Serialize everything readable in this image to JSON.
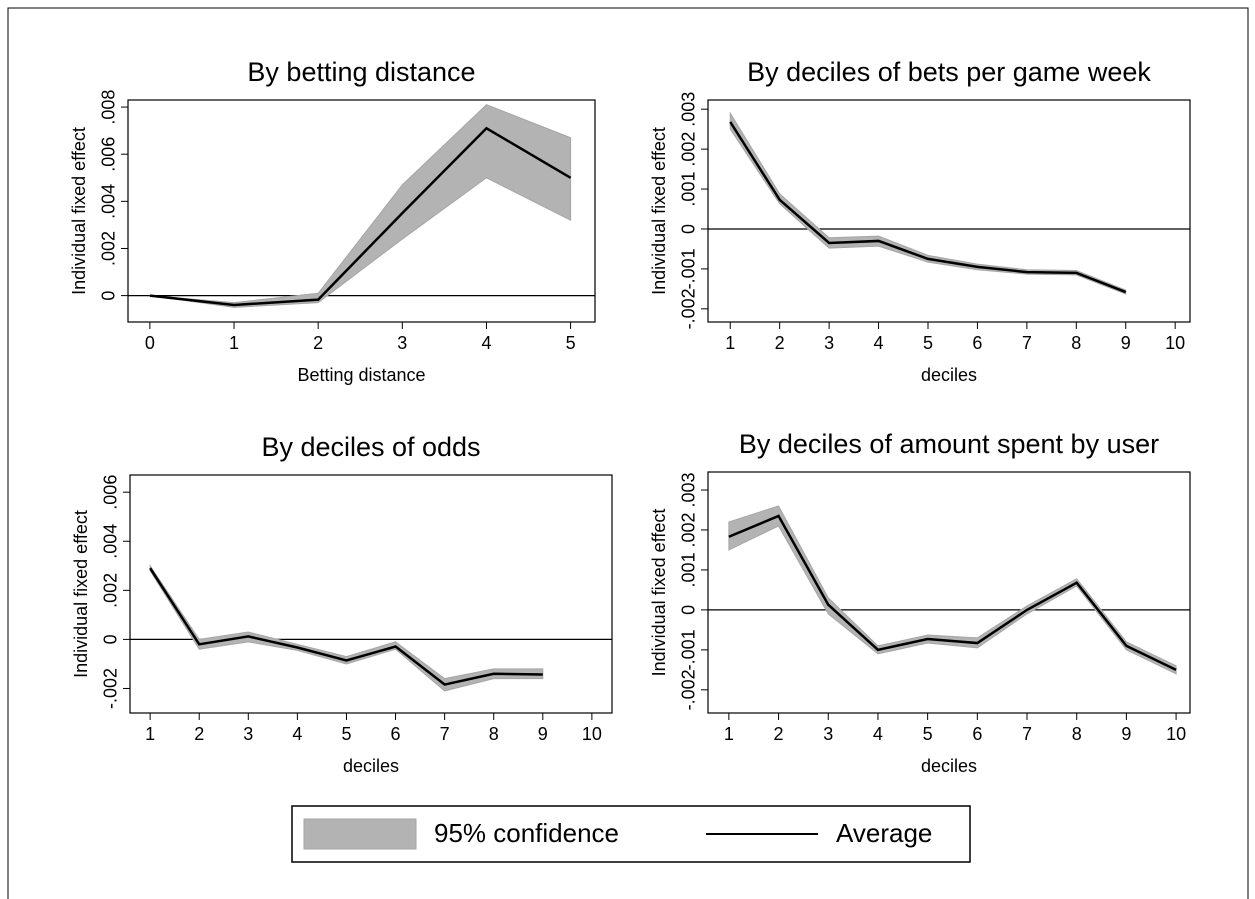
{
  "chart_data": [
    {
      "type": "line",
      "title": "By betting distance",
      "xlabel": "Betting distance",
      "ylabel": "Individual fixed effect",
      "x": [
        0,
        1,
        2,
        3,
        4,
        5
      ],
      "xlim": [
        -0.26,
        5.29
      ],
      "xticks": [
        0,
        1,
        2,
        3,
        4,
        5
      ],
      "ylim": [
        -0.00112,
        0.0083
      ],
      "yticks": [
        0,
        {
          "value": 0.002,
          "label": ".002"
        },
        {
          "value": 0.004,
          "label": ".004"
        },
        {
          "value": 0.006,
          "label": ".006"
        },
        {
          "value": 0.008,
          "label": ".008"
        }
      ],
      "zero_line": true,
      "series": [
        {
          "name": "95% confidence",
          "color": "#b3b3b3",
          "lower": [
            0,
            -0.0005,
            -0.0003,
            0.0024,
            0.005,
            0.0032
          ],
          "upper": [
            0,
            -0.0003,
            0.0001,
            0.0047,
            0.0081,
            0.0067
          ]
        },
        {
          "name": "Average",
          "color": "#000000",
          "values": [
            0,
            -0.0004,
            -0.00017,
            0.0035,
            0.0071,
            0.005
          ]
        }
      ]
    },
    {
      "type": "line",
      "title": "By deciles of bets per game week",
      "xlabel": "deciles",
      "ylabel": "Individual fixed effect",
      "x": [
        1,
        2,
        3,
        4,
        5,
        6,
        7,
        8,
        9
      ],
      "xlim": [
        0.55,
        10.3
      ],
      "xticks": [
        1,
        2,
        3,
        4,
        5,
        6,
        7,
        8,
        9,
        10
      ],
      "ylim": [
        -0.00233,
        0.00323
      ],
      "yticks": [
        {
          "value": -0.002,
          "label": "-.002"
        },
        {
          "value": -0.001,
          "label": "-.001"
        },
        0,
        {
          "value": 0.001,
          "label": ".001"
        },
        {
          "value": 0.002,
          "label": ".002"
        },
        {
          "value": 0.003,
          "label": ".003"
        }
      ],
      "zero_line": true,
      "series": [
        {
          "name": "95% confidence",
          "color": "#b3b3b3",
          "lower": [
            0.0025,
            0.00063,
            -0.00048,
            -0.00043,
            -0.00083,
            -0.00102,
            -0.00113,
            -0.00115,
            -0.00163
          ],
          "upper": [
            0.0029,
            0.00088,
            -0.00022,
            -0.00018,
            -0.00066,
            -0.00088,
            -0.00102,
            -0.00104,
            -0.00153
          ]
        },
        {
          "name": "Average",
          "color": "#000000",
          "values": [
            0.00268,
            0.00073,
            -0.00035,
            -0.0003,
            -0.00075,
            -0.00095,
            -0.00108,
            -0.0011,
            -0.00158
          ]
        }
      ]
    },
    {
      "type": "line",
      "title": "By deciles of odds",
      "xlabel": "deciles",
      "ylabel": "Individual fixed effect",
      "x": [
        1,
        2,
        3,
        4,
        5,
        6,
        7,
        8,
        9
      ],
      "xlim": [
        0.59,
        10.41
      ],
      "xticks": [
        1,
        2,
        3,
        4,
        5,
        6,
        7,
        8,
        9,
        10
      ],
      "ylim": [
        -0.003,
        0.0067
      ],
      "yticks": [
        {
          "value": -0.002,
          "label": "-.002"
        },
        0,
        {
          "value": 0.002,
          "label": ".002"
        },
        {
          "value": 0.004,
          "label": ".004"
        },
        {
          "value": 0.006,
          "label": ".006"
        }
      ],
      "zero_line": true,
      "series": [
        {
          "name": "95% confidence",
          "color": "#b3b3b3",
          "lower": [
            0.0028,
            -0.0004,
            -0.0001,
            -0.00045,
            -0.001,
            -0.0004,
            -0.0021,
            -0.0016,
            -0.0016
          ],
          "upper": [
            0.003,
            0.0,
            0.0003,
            -0.0002,
            -0.0007,
            -0.0001,
            -0.0016,
            -0.0012,
            -0.0012
          ]
        },
        {
          "name": "Average",
          "color": "#000000",
          "values": [
            0.0029,
            -0.0002,
            0.00012,
            -0.00033,
            -0.00086,
            -0.00029,
            -0.00184,
            -0.0014,
            -0.00143
          ]
        }
      ]
    },
    {
      "type": "line",
      "title": "By deciles of amount spent by user",
      "xlabel": "deciles",
      "ylabel": "Individual fixed effect",
      "x": [
        1,
        2,
        3,
        4,
        5,
        6,
        7,
        8,
        9,
        10
      ],
      "xlim": [
        0.58,
        10.28
      ],
      "xticks": [
        1,
        2,
        3,
        4,
        5,
        6,
        7,
        8,
        9,
        10
      ],
      "ylim": [
        -0.00258,
        0.00345
      ],
      "yticks": [
        {
          "value": -0.002,
          "label": "-.002"
        },
        {
          "value": -0.001,
          "label": "-.001"
        },
        0,
        {
          "value": 0.001,
          "label": ".001"
        },
        {
          "value": 0.002,
          "label": ".002"
        },
        {
          "value": 0.003,
          "label": ".003"
        }
      ],
      "zero_line": true,
      "series": [
        {
          "name": "95% confidence",
          "color": "#b3b3b3",
          "lower": [
            0.0015,
            0.0021,
            -0.0001,
            -0.0011,
            -0.00083,
            -0.00095,
            -0.0001,
            0.0006,
            -0.001,
            -0.0016
          ],
          "upper": [
            0.0022,
            0.0026,
            0.0003,
            -0.0009,
            -0.00063,
            -0.0007,
            0.0001,
            0.00078,
            -0.0008,
            -0.0014
          ]
        },
        {
          "name": "Average",
          "color": "#000000",
          "values": [
            0.00183,
            0.00235,
            0.00013,
            -0.001,
            -0.00073,
            -0.00083,
            0,
            0.00068,
            -0.0009,
            -0.0015
          ]
        }
      ]
    }
  ]
}
